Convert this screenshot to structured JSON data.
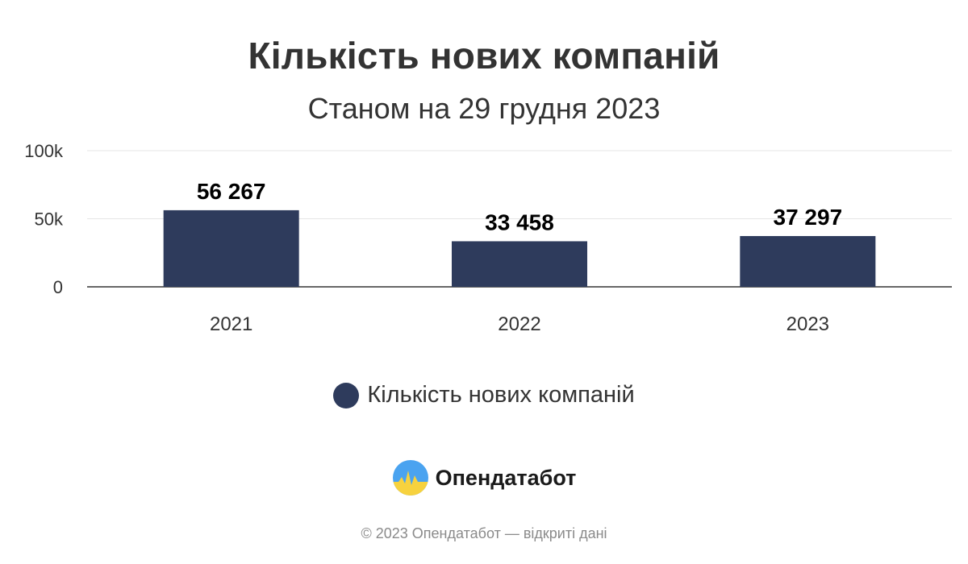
{
  "chart_data": {
    "type": "bar",
    "title": "Кількість нових компаній",
    "subtitle": "Станом на 29 грудня 2023",
    "categories": [
      "2021",
      "2022",
      "2023"
    ],
    "series": [
      {
        "name": "Кількість нових компаній",
        "values": [
          56267,
          33458,
          37297
        ],
        "data_labels": [
          "56 267",
          "33 458",
          "37 297"
        ],
        "color": "#2e3b5c"
      }
    ],
    "ylim": [
      0,
      100000
    ],
    "yticks": [
      0,
      50000,
      100000
    ],
    "ytick_labels": [
      "0",
      "50k",
      "100k"
    ],
    "grid": true,
    "legend": "bottom-center"
  },
  "brand": {
    "name": "Опендатабот",
    "logo_icon": "opendatabot-logo-icon"
  },
  "footer": {
    "text": "© 2023 Опендатабот — відкриті дані"
  },
  "colors": {
    "bar": "#2e3b5c",
    "grid": "#e6e6e6",
    "axis": "#333333",
    "logo_blue": "#4aa3f0",
    "logo_yellow": "#f7d23e"
  }
}
